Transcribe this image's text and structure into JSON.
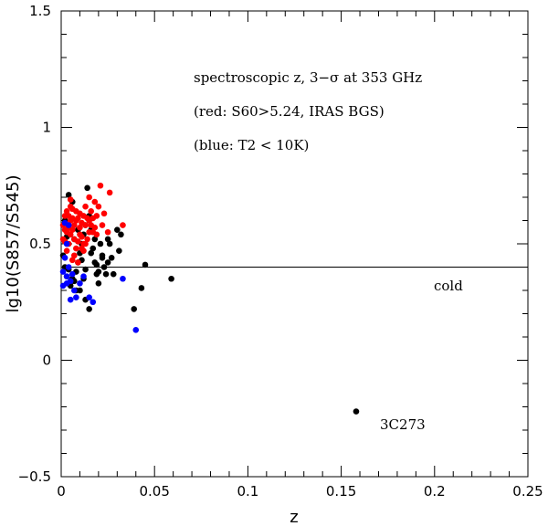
{
  "chart_data": {
    "type": "scatter",
    "xlabel": "z",
    "ylabel": "lg10(S857/S545)",
    "xlim": [
      0,
      0.25
    ],
    "ylim": [
      -0.5,
      1.5
    ],
    "xticks": [
      0,
      0.05,
      0.1,
      0.15,
      0.2,
      0.25
    ],
    "xtick_labels": [
      "0",
      "0.05",
      "0.1",
      "0.15",
      "0.2",
      "0.25"
    ],
    "yticks": [
      -0.5,
      0,
      0.5,
      1,
      1.5
    ],
    "ytick_labels": [
      "−0.5",
      "0",
      "0.5",
      "1",
      "1.5"
    ],
    "grid": false,
    "reference_line_y": 0.4,
    "annotations": {
      "line1": "spectroscopic z, 3−σ at 353 GHz",
      "line2": "(red: S60>5.24, IRAS BGS)",
      "line3": "(blue: T2 < 10K)",
      "cold": "cold",
      "source": "3C273"
    },
    "colors": {
      "black": "#000000",
      "red": "#ff0000",
      "blue": "#0000ff"
    },
    "series": [
      {
        "color": "#000000",
        "points": [
          [
            0.004,
            0.71
          ],
          [
            0.006,
            0.68
          ],
          [
            0.002,
            0.6
          ],
          [
            0.003,
            0.53
          ],
          [
            0.001,
            0.45
          ],
          [
            0.002,
            0.4
          ],
          [
            0.003,
            0.36
          ],
          [
            0.005,
            0.32
          ],
          [
            0.007,
            0.34
          ],
          [
            0.008,
            0.38
          ],
          [
            0.009,
            0.42
          ],
          [
            0.01,
            0.46
          ],
          [
            0.011,
            0.5
          ],
          [
            0.012,
            0.54
          ],
          [
            0.013,
            0.58
          ],
          [
            0.014,
            0.74
          ],
          [
            0.015,
            0.62
          ],
          [
            0.016,
            0.56
          ],
          [
            0.017,
            0.48
          ],
          [
            0.018,
            0.42
          ],
          [
            0.019,
            0.37
          ],
          [
            0.02,
            0.33
          ],
          [
            0.021,
            0.5
          ],
          [
            0.022,
            0.45
          ],
          [
            0.023,
            0.4
          ],
          [
            0.024,
            0.37
          ],
          [
            0.025,
            0.52
          ],
          [
            0.026,
            0.5
          ],
          [
            0.027,
            0.44
          ],
          [
            0.028,
            0.37
          ],
          [
            0.03,
            0.56
          ],
          [
            0.031,
            0.47
          ],
          [
            0.032,
            0.54
          ],
          [
            0.015,
            0.22
          ],
          [
            0.013,
            0.26
          ],
          [
            0.01,
            0.3
          ],
          [
            0.012,
            0.35
          ],
          [
            0.02,
            0.38
          ],
          [
            0.019,
            0.41
          ],
          [
            0.004,
            0.39
          ],
          [
            0.006,
            0.35
          ],
          [
            0.008,
            0.3
          ],
          [
            0.011,
            0.43
          ],
          [
            0.013,
            0.39
          ],
          [
            0.016,
            0.46
          ],
          [
            0.018,
            0.52
          ],
          [
            0.022,
            0.44
          ],
          [
            0.025,
            0.42
          ],
          [
            0.009,
            0.56
          ],
          [
            0.007,
            0.52
          ],
          [
            0.039,
            0.22
          ],
          [
            0.043,
            0.31
          ],
          [
            0.045,
            0.41
          ],
          [
            0.059,
            0.35
          ],
          [
            0.158,
            -0.22
          ]
        ]
      },
      {
        "color": "#ff0000",
        "points": [
          [
            0.001,
            0.58
          ],
          [
            0.002,
            0.62
          ],
          [
            0.003,
            0.55
          ],
          [
            0.004,
            0.5
          ],
          [
            0.005,
            0.6
          ],
          [
            0.006,
            0.56
          ],
          [
            0.007,
            0.52
          ],
          [
            0.008,
            0.48
          ],
          [
            0.009,
            0.61
          ],
          [
            0.01,
            0.57
          ],
          [
            0.011,
            0.53
          ],
          [
            0.012,
            0.62
          ],
          [
            0.013,
            0.58
          ],
          [
            0.014,
            0.52
          ],
          [
            0.015,
            0.6
          ],
          [
            0.016,
            0.64
          ],
          [
            0.017,
            0.55
          ],
          [
            0.018,
            0.68
          ],
          [
            0.019,
            0.62
          ],
          [
            0.02,
            0.66
          ],
          [
            0.021,
            0.75
          ],
          [
            0.022,
            0.58
          ],
          [
            0.023,
            0.63
          ],
          [
            0.025,
            0.55
          ],
          [
            0.026,
            0.72
          ],
          [
            0.033,
            0.58
          ],
          [
            0.002,
            0.51
          ],
          [
            0.003,
            0.47
          ],
          [
            0.004,
            0.57
          ],
          [
            0.005,
            0.54
          ],
          [
            0.006,
            0.61
          ],
          [
            0.007,
            0.58
          ],
          [
            0.008,
            0.64
          ],
          [
            0.009,
            0.51
          ],
          [
            0.01,
            0.63
          ],
          [
            0.011,
            0.59
          ],
          [
            0.012,
            0.47
          ],
          [
            0.013,
            0.66
          ],
          [
            0.014,
            0.61
          ],
          [
            0.015,
            0.55
          ],
          [
            0.016,
            0.58
          ],
          [
            0.017,
            0.61
          ],
          [
            0.018,
            0.57
          ],
          [
            0.006,
            0.65
          ],
          [
            0.008,
            0.6
          ],
          [
            0.01,
            0.54
          ],
          [
            0.003,
            0.64
          ],
          [
            0.005,
            0.66
          ],
          [
            0.012,
            0.5
          ],
          [
            0.002,
            0.56
          ],
          [
            0.004,
            0.62
          ],
          [
            0.007,
            0.45
          ],
          [
            0.009,
            0.42
          ],
          [
            0.011,
            0.48
          ],
          [
            0.013,
            0.5
          ],
          [
            0.001,
            0.52
          ],
          [
            0.006,
            0.43
          ],
          [
            0.019,
            0.54
          ],
          [
            0.015,
            0.7
          ],
          [
            0.005,
            0.69
          ]
        ]
      },
      {
        "color": "#0000ff",
        "points": [
          [
            0.002,
            0.59
          ],
          [
            0.003,
            0.5
          ],
          [
            0.002,
            0.44
          ],
          [
            0.001,
            0.38
          ],
          [
            0.003,
            0.33
          ],
          [
            0.005,
            0.26
          ],
          [
            0.007,
            0.3
          ],
          [
            0.008,
            0.27
          ],
          [
            0.01,
            0.33
          ],
          [
            0.012,
            0.36
          ],
          [
            0.015,
            0.27
          ],
          [
            0.017,
            0.25
          ],
          [
            0.005,
            0.34
          ],
          [
            0.004,
            0.4
          ],
          [
            0.003,
            0.36
          ],
          [
            0.006,
            0.37
          ],
          [
            0.033,
            0.35
          ],
          [
            0.04,
            0.13
          ],
          [
            0.001,
            0.32
          ],
          [
            0.004,
            0.58
          ]
        ]
      }
    ]
  }
}
